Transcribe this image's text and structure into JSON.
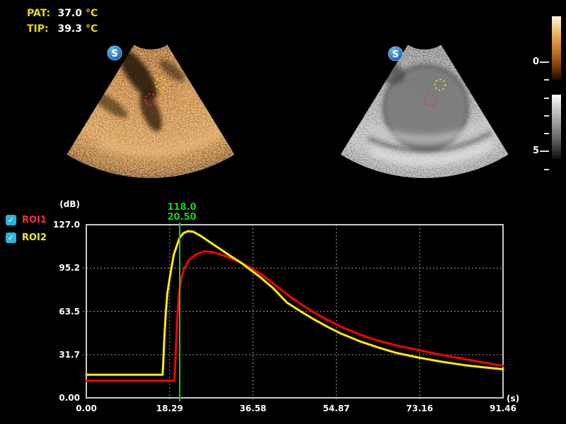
{
  "theme": {
    "accent_yellow": "#e6dd05",
    "cursor_green": "#17d017",
    "checkbox_cyan": "#2ab5d8",
    "grid_gray": "#9a9a9a",
    "frame_gray": "#c8c8c8"
  },
  "header": {
    "pat": {
      "label": "PAT:",
      "value": "37.0",
      "unit": "°C"
    },
    "tip": {
      "label": "TIP:",
      "value": "39.3",
      "unit": "°C"
    }
  },
  "images": {
    "left": {
      "logo": "S"
    },
    "right": {
      "logo": "S"
    }
  },
  "colorbar_scale": {
    "top_label": "0",
    "bottom_label": "5"
  },
  "legend": {
    "check_glyph": "✓",
    "items": [
      {
        "label": "ROI1",
        "color": "#ff3030",
        "checked": true
      },
      {
        "label": "ROI2",
        "color": "#f0f000",
        "checked": true
      }
    ]
  },
  "chart_data": {
    "type": "line",
    "title": "",
    "xlabel": "(s)",
    "ylabel": "(dB)",
    "xlim": [
      0,
      91.46
    ],
    "ylim": [
      0,
      127.0
    ],
    "grid": "dashed",
    "legend_position": "upper-left-outside",
    "x_ticks": [
      {
        "label": "0.00",
        "value": 0
      },
      {
        "label": "18.29",
        "value": 18.29
      },
      {
        "label": "36.58",
        "value": 36.58
      },
      {
        "label": "54.87",
        "value": 54.87
      },
      {
        "label": "73.16",
        "value": 73.16
      },
      {
        "label": "91.46",
        "value": 91.46
      }
    ],
    "y_ticks": [
      {
        "label": "127.0",
        "value": 127.0
      },
      {
        "label": "95.2",
        "value": 95.2
      },
      {
        "label": "63.5",
        "value": 63.5
      },
      {
        "label": "31.7",
        "value": 31.7
      },
      {
        "label": "0.00",
        "value": 0
      }
    ],
    "cursor": {
      "time": 20.5,
      "value_label": "118.0",
      "time_label": "20.50"
    },
    "series": [
      {
        "name": "ROI1",
        "color": "#ff0000",
        "points": [
          [
            0,
            12.5
          ],
          [
            19.3,
            12.5
          ],
          [
            19.45,
            20
          ],
          [
            19.7,
            40
          ],
          [
            20,
            60
          ],
          [
            20.3,
            75
          ],
          [
            20.8,
            87
          ],
          [
            21.5,
            95
          ],
          [
            22.5,
            101
          ],
          [
            24,
            105
          ],
          [
            26,
            107.5
          ],
          [
            28,
            106.8
          ],
          [
            30,
            104.5
          ],
          [
            32,
            102
          ],
          [
            34,
            99
          ],
          [
            36,
            95.5
          ],
          [
            38,
            91.5
          ],
          [
            41,
            84
          ],
          [
            44,
            76
          ],
          [
            47,
            69
          ],
          [
            50,
            62.5
          ],
          [
            53,
            57
          ],
          [
            56,
            52
          ],
          [
            60,
            46.5
          ],
          [
            64,
            42
          ],
          [
            68,
            38.5
          ],
          [
            73,
            35
          ],
          [
            78,
            31.5
          ],
          [
            83,
            28.5
          ],
          [
            87,
            26
          ],
          [
            91.46,
            23.5
          ]
        ]
      },
      {
        "name": "ROI2",
        "color": "#ffee00",
        "points": [
          [
            0,
            17
          ],
          [
            16.75,
            17
          ],
          [
            16.9,
            26
          ],
          [
            17.15,
            45
          ],
          [
            17.45,
            63
          ],
          [
            17.8,
            77
          ],
          [
            18.3,
            88
          ],
          [
            19.2,
            105
          ],
          [
            20,
            113
          ],
          [
            20.5,
            117.5
          ],
          [
            21.3,
            120.8
          ],
          [
            22.3,
            122.3
          ],
          [
            23.5,
            121.8
          ],
          [
            25,
            119
          ],
          [
            27,
            114.5
          ],
          [
            29,
            110
          ],
          [
            31,
            105.5
          ],
          [
            34,
            99
          ],
          [
            36,
            94
          ],
          [
            38,
            89
          ],
          [
            41,
            80.5
          ],
          [
            44,
            70
          ],
          [
            47,
            63.5
          ],
          [
            50,
            57.5
          ],
          [
            53,
            52
          ],
          [
            56,
            47
          ],
          [
            60,
            41.5
          ],
          [
            64,
            37
          ],
          [
            68,
            33
          ],
          [
            73,
            29.5
          ],
          [
            78,
            26.5
          ],
          [
            83,
            24
          ],
          [
            87,
            22.5
          ],
          [
            91.46,
            21
          ]
        ]
      }
    ]
  }
}
